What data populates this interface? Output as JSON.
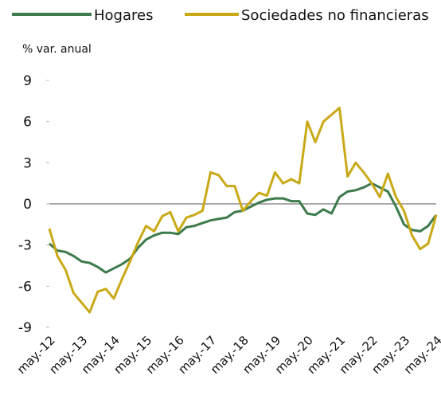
{
  "chart_data": {
    "type": "line",
    "y_label": "% var. anual",
    "categories": [
      "may.-12",
      null,
      null,
      null,
      "may.-13",
      null,
      null,
      null,
      "may.-14",
      null,
      null,
      null,
      "may.-15",
      null,
      null,
      null,
      "may.-16",
      null,
      null,
      null,
      "may.-17",
      null,
      null,
      null,
      "may.-18",
      null,
      null,
      null,
      "may.-19",
      null,
      null,
      null,
      "may.-20",
      null,
      null,
      null,
      "may.-21",
      null,
      null,
      null,
      "may.-22",
      null,
      null,
      null,
      "may.-23",
      null,
      null,
      null,
      "may.-24"
    ],
    "series": [
      {
        "name": "Hogares",
        "color": "#3d7a4c",
        "values": [
          -2.9,
          -3.4,
          -3.5,
          -3.8,
          -4.2,
          -4.3,
          -4.6,
          -5.0,
          -4.7,
          -4.4,
          -4.0,
          -3.2,
          -2.6,
          -2.3,
          -2.1,
          -2.1,
          -2.2,
          -1.7,
          -1.6,
          -1.4,
          -1.2,
          -1.1,
          -1.0,
          -0.6,
          -0.5,
          -0.2,
          0.1,
          0.3,
          0.4,
          0.4,
          0.2,
          0.2,
          -0.7,
          -0.8,
          -0.4,
          -0.7,
          0.5,
          0.9,
          1.0,
          1.2,
          1.5,
          1.2,
          0.9,
          -0.2,
          -1.5,
          -1.9,
          -2.0,
          -1.6,
          -0.8
        ]
      },
      {
        "name": "Sociedades no financieras",
        "color": "#c9a917",
        "values": [
          -1.8,
          -3.8,
          -4.8,
          -6.5,
          -7.2,
          -7.9,
          -6.4,
          -6.2,
          -6.9,
          -5.5,
          -4.2,
          -2.8,
          -1.6,
          -2.0,
          -0.9,
          -0.6,
          -2.0,
          -1.0,
          -0.8,
          -0.5,
          2.3,
          2.1,
          1.3,
          1.3,
          -0.5,
          0.2,
          0.8,
          0.6,
          2.3,
          1.5,
          1.8,
          1.5,
          6.0,
          4.5,
          6.0,
          6.5,
          7.0,
          2.0,
          3.0,
          2.3,
          1.5,
          0.5,
          2.2,
          0.5,
          -0.5,
          -2.3,
          -3.3,
          -2.9,
          -0.8
        ]
      }
    ],
    "ylim": [
      -9,
      9
    ],
    "yticks": [
      9,
      6,
      3,
      0,
      -3,
      -6,
      -9
    ]
  }
}
